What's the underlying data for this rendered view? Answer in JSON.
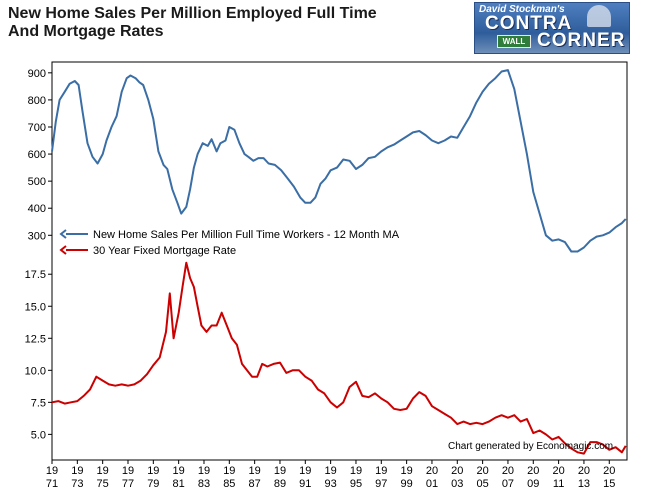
{
  "header": {
    "title": "New Home Sales Per Million Employed Full Time\nAnd Mortgage Rates"
  },
  "logo": {
    "line1": "David Stockman's",
    "line2": "CONTRA",
    "line3": "CORNER",
    "sign": "WALL"
  },
  "colors": {
    "home_sales": "#3a6ea5",
    "mortgage": "#cc0000",
    "frame": "#000000"
  },
  "chart_data": [
    {
      "type": "line",
      "title": "",
      "ylim": [
        290,
        940
      ],
      "y_ticks": [
        "300",
        "400",
        "500",
        "600",
        "700",
        "800",
        "900"
      ],
      "x_ticks": [
        "1971",
        "1973",
        "1975",
        "1977",
        "1979",
        "1981",
        "1983",
        "1985",
        "1987",
        "1989",
        "1991",
        "1993",
        "1995",
        "1997",
        "1999",
        "2001",
        "2003",
        "2005",
        "2007",
        "2009",
        "2011",
        "2013",
        "2015"
      ],
      "legend": "New Home Sales Per Million Full Time Workers - 12 Month MA",
      "series": [
        {
          "name": "New Home Sales Per Million Full Time Workers - 12 Month MA",
          "x": [
            1971.0,
            1971.3,
            1971.6,
            1972.0,
            1972.4,
            1972.8,
            1973.1,
            1973.4,
            1973.8,
            1974.2,
            1974.6,
            1975.0,
            1975.3,
            1975.7,
            1976.1,
            1976.5,
            1976.9,
            1977.2,
            1977.6,
            1977.9,
            1978.2,
            1978.6,
            1979.0,
            1979.4,
            1979.8,
            1980.1,
            1980.5,
            1980.9,
            1981.2,
            1981.6,
            1981.9,
            1982.2,
            1982.5,
            1982.9,
            1983.3,
            1983.6,
            1984.0,
            1984.3,
            1984.7,
            1985.0,
            1985.4,
            1985.8,
            1986.2,
            1986.5,
            1986.9,
            1987.3,
            1987.7,
            1988.1,
            1988.6,
            1989.1,
            1989.6,
            1990.1,
            1990.6,
            1991.0,
            1991.4,
            1991.8,
            1992.2,
            1992.6,
            1993.0,
            1993.5,
            1994.0,
            1994.5,
            1995.0,
            1995.5,
            1996.0,
            1996.5,
            1997.0,
            1997.5,
            1998.0,
            1998.5,
            1999.0,
            1999.5,
            2000.0,
            2000.5,
            2001.0,
            2001.5,
            2002.0,
            2002.5,
            2003.0,
            2003.5,
            2004.0,
            2004.5,
            2005.0,
            2005.5,
            2006.0,
            2006.5,
            2007.0,
            2007.5,
            2008.0,
            2008.5,
            2009.0,
            2009.5,
            2010.0,
            2010.5,
            2011.0,
            2011.5,
            2012.0,
            2012.5,
            2013.0,
            2013.5,
            2014.0,
            2014.5,
            2015.0,
            2015.5,
            2016.0,
            2016.3
          ],
          "y": [
            610,
            720,
            800,
            830,
            860,
            870,
            855,
            760,
            640,
            590,
            565,
            600,
            650,
            700,
            740,
            830,
            880,
            890,
            880,
            865,
            855,
            800,
            730,
            610,
            560,
            545,
            470,
            420,
            380,
            405,
            470,
            550,
            600,
            640,
            630,
            655,
            610,
            640,
            650,
            700,
            690,
            640,
            600,
            590,
            575,
            585,
            585,
            565,
            560,
            540,
            510,
            480,
            440,
            420,
            420,
            440,
            490,
            510,
            540,
            550,
            580,
            575,
            545,
            560,
            585,
            590,
            610,
            625,
            635,
            650,
            665,
            680,
            685,
            670,
            650,
            640,
            650,
            665,
            660,
            700,
            740,
            790,
            830,
            860,
            880,
            905,
            910,
            840,
            720,
            600,
            460,
            380,
            300,
            280,
            285,
            275,
            240,
            240,
            255,
            280,
            295,
            300,
            310,
            330,
            345,
            360
          ]
        }
      ]
    },
    {
      "type": "line",
      "title": "",
      "ylim": [
        3.0,
        19.0
      ],
      "y_ticks": [
        "5.0",
        "7.5",
        "10.0",
        "12.5",
        "15.0",
        "17.5"
      ],
      "x_ticks": [
        "1971",
        "1973",
        "1975",
        "1977",
        "1979",
        "1981",
        "1983",
        "1985",
        "1987",
        "1989",
        "1991",
        "1993",
        "1995",
        "1997",
        "1999",
        "2001",
        "2003",
        "2005",
        "2007",
        "2009",
        "2011",
        "2013",
        "2015"
      ],
      "legend": "30 Year Fixed Mortgage Rate",
      "credit": "Chart generated by Economagic.com",
      "series": [
        {
          "name": "30 Year Fixed Mortgage Rate",
          "x": [
            1971.0,
            1971.5,
            1972.0,
            1972.5,
            1973.0,
            1973.5,
            1974.0,
            1974.5,
            1975.0,
            1975.5,
            1976.0,
            1976.5,
            1977.0,
            1977.5,
            1978.0,
            1978.5,
            1979.0,
            1979.5,
            1980.0,
            1980.3,
            1980.6,
            1981.0,
            1981.3,
            1981.6,
            1981.9,
            1982.2,
            1982.5,
            1982.8,
            1983.2,
            1983.6,
            1984.0,
            1984.4,
            1984.8,
            1985.2,
            1985.6,
            1986.0,
            1986.4,
            1986.8,
            1987.2,
            1987.6,
            1988.0,
            1988.5,
            1989.0,
            1989.5,
            1990.0,
            1990.5,
            1991.0,
            1991.5,
            1992.0,
            1992.5,
            1993.0,
            1993.5,
            1994.0,
            1994.5,
            1995.0,
            1995.5,
            1996.0,
            1996.5,
            1997.0,
            1997.5,
            1998.0,
            1998.5,
            1999.0,
            1999.5,
            2000.0,
            2000.5,
            2001.0,
            2001.5,
            2002.0,
            2002.5,
            2003.0,
            2003.5,
            2004.0,
            2004.5,
            2005.0,
            2005.5,
            2006.0,
            2006.5,
            2007.0,
            2007.5,
            2008.0,
            2008.5,
            2009.0,
            2009.5,
            2010.0,
            2010.5,
            2011.0,
            2011.5,
            2012.0,
            2012.5,
            2013.0,
            2013.5,
            2014.0,
            2014.5,
            2015.0,
            2015.5,
            2016.0,
            2016.3
          ],
          "y": [
            7.5,
            7.6,
            7.4,
            7.5,
            7.6,
            8.0,
            8.5,
            9.5,
            9.2,
            8.9,
            8.8,
            8.9,
            8.8,
            8.9,
            9.2,
            9.7,
            10.4,
            11.0,
            13.0,
            16.0,
            12.5,
            14.5,
            16.5,
            18.4,
            17.2,
            16.5,
            15.0,
            13.5,
            13.0,
            13.5,
            13.5,
            14.5,
            13.5,
            12.5,
            12.0,
            10.5,
            10.0,
            9.5,
            9.5,
            10.5,
            10.3,
            10.5,
            10.6,
            9.8,
            10.0,
            10.0,
            9.5,
            9.2,
            8.5,
            8.2,
            7.5,
            7.1,
            7.5,
            8.7,
            9.1,
            8.0,
            7.9,
            8.2,
            7.8,
            7.5,
            7.0,
            6.9,
            7.0,
            7.8,
            8.3,
            8.0,
            7.2,
            6.9,
            6.6,
            6.3,
            5.8,
            6.0,
            5.8,
            5.9,
            5.8,
            6.0,
            6.3,
            6.5,
            6.3,
            6.5,
            6.0,
            6.2,
            5.1,
            5.3,
            5.0,
            4.6,
            4.8,
            4.3,
            3.9,
            3.6,
            3.5,
            4.4,
            4.4,
            4.2,
            3.8,
            4.0,
            3.6,
            4.1
          ]
        }
      ]
    }
  ]
}
